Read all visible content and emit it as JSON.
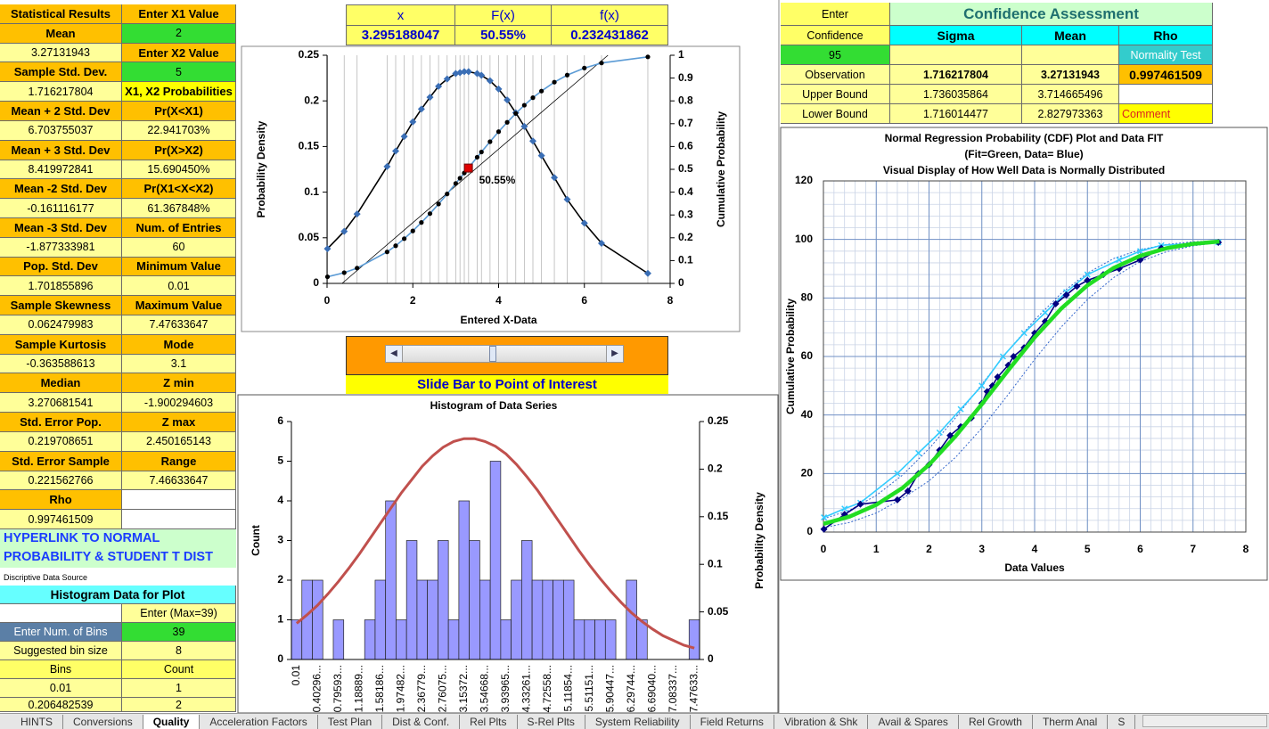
{
  "stats_table": {
    "rows": [
      [
        "Statistical Results",
        "Enter X1 Value"
      ],
      [
        "Mean",
        "2"
      ],
      [
        "3.27131943",
        "Enter X2 Value"
      ],
      [
        "Sample Std. Dev.",
        "5"
      ],
      [
        "1.716217804",
        "X1, X2 Probabilities"
      ],
      [
        "Mean + 2 Std. Dev",
        "Pr(X<X1)"
      ],
      [
        "6.703755037",
        "22.941703%"
      ],
      [
        "Mean + 3 Std. Dev",
        "Pr(X>X2)"
      ],
      [
        "8.419972841",
        "15.690450%"
      ],
      [
        "Mean -2 Std. Dev",
        "Pr(X1<X<X2)"
      ],
      [
        "-0.161116177",
        "61.367848%"
      ],
      [
        "Mean -3 Std. Dev",
        "Num. of Entries"
      ],
      [
        "-1.877333981",
        "60"
      ],
      [
        "Pop. Std. Dev",
        "Minimum Value"
      ],
      [
        "1.701855896",
        "0.01"
      ],
      [
        "Sample Skewness",
        "Maximum Value"
      ],
      [
        "0.062479983",
        "7.47633647"
      ],
      [
        "Sample Kurtosis",
        "Mode"
      ],
      [
        "-0.363588613",
        "3.1"
      ],
      [
        "Median",
        "Z min"
      ],
      [
        "3.270681541",
        "-1.900294603"
      ],
      [
        "Std. Error Pop.",
        "Z max"
      ],
      [
        "0.219708651",
        "2.450165143"
      ],
      [
        "Std. Error Sample",
        "Range"
      ],
      [
        "0.221562766",
        "7.46633647"
      ],
      [
        "Rho",
        null
      ],
      [
        "0.997461509",
        null
      ]
    ]
  },
  "hyperlink": "HYPERLINK TO NORMAL PROBABILITY & STUDENT T DIST",
  "data_source_note": "Discriptive Data Source",
  "histogram_table": {
    "title": "Histogram Data for Plot",
    "rows": [
      [
        null,
        "Enter (Max=39)"
      ],
      [
        "Enter Num. of Bins",
        "39"
      ],
      [
        "Suggested  bin size",
        "8"
      ],
      [
        "Bins",
        "Count"
      ],
      [
        "0.01",
        "1"
      ],
      [
        "0.206482539",
        "2"
      ]
    ]
  },
  "point_table": {
    "headers": [
      "x",
      "F(x)",
      "f(x)"
    ],
    "values": [
      "3.295188047",
      "50.55%",
      "0.232431862"
    ]
  },
  "slider_label": "Slide Bar to Point of Interest",
  "confidence_table": {
    "rows": [
      [
        "Enter",
        "Confidence Assessment"
      ],
      [
        "Confidence",
        "Sigma",
        "Mean",
        "Rho"
      ],
      [
        "95",
        null,
        null,
        "Normality Test"
      ],
      [
        "Observation",
        "1.716217804",
        "3.27131943",
        "0.997461509"
      ],
      [
        "Upper Bound",
        "1.736035864",
        "3.714665496",
        null
      ],
      [
        "Lower Bound",
        "1.716014477",
        "2.827973363",
        "Comment"
      ]
    ]
  },
  "charts": [
    {
      "type": "line",
      "x_title": "Entered X-Data",
      "y_title": "Probability Density",
      "y2_title": "Cumulative Probability",
      "xlim": [
        0,
        8
      ],
      "xticks": [
        0,
        2,
        4,
        6,
        8
      ],
      "ylim": [
        0,
        0.25
      ],
      "yticks": [
        0,
        0.05,
        0.1,
        0.15,
        0.2,
        0.25
      ],
      "y2lim": [
        0,
        1
      ],
      "y2ticks": [
        0,
        0.1,
        0.2,
        0.3,
        0.4,
        0.5,
        0.6,
        0.7,
        0.8,
        0.9,
        1
      ],
      "x_grid_at_data": true,
      "x": [
        0.01,
        0.4,
        0.7,
        1.4,
        1.6,
        1.8,
        2.0,
        2.2,
        2.4,
        2.6,
        2.8,
        3.0,
        3.1,
        3.2,
        3.3,
        3.5,
        3.6,
        3.8,
        4.0,
        4.2,
        4.4,
        4.6,
        4.8,
        5.0,
        5.3,
        5.6,
        6.0,
        6.4,
        7.48
      ],
      "series": [
        {
          "color": "#3a6eb5",
          "line_color": "#000000",
          "marker": "diamond",
          "values": [
            0.038,
            0.057,
            0.076,
            0.128,
            0.145,
            0.161,
            0.177,
            0.191,
            0.204,
            0.216,
            0.224,
            0.23,
            0.231,
            0.232,
            0.232,
            0.23,
            0.228,
            0.222,
            0.213,
            0.201,
            0.187,
            0.172,
            0.156,
            0.14,
            0.116,
            0.092,
            0.066,
            0.044,
            0.011
          ]
        },
        {
          "color": "#000000",
          "line_color": "#5b9bd5",
          "marker": "dot",
          "axis": "y2",
          "values": [
            0.029,
            0.047,
            0.067,
            0.138,
            0.165,
            0.196,
            0.23,
            0.267,
            0.306,
            0.348,
            0.392,
            0.438,
            0.461,
            0.484,
            0.507,
            0.553,
            0.576,
            0.621,
            0.665,
            0.706,
            0.745,
            0.781,
            0.814,
            0.843,
            0.882,
            0.913,
            0.944,
            0.966,
            0.993
          ]
        }
      ],
      "fit_line": {
        "x": [
          0.35,
          6.55
        ],
        "values": [
          0,
          1
        ],
        "axis": "y2",
        "color": "#000000"
      },
      "highlight": {
        "x": 3.295188047,
        "value": 0.5055,
        "axis": "y2",
        "color": "#e00000"
      },
      "annotation": "50.55%"
    },
    {
      "type": "bar",
      "title": "Histogram of Data Series",
      "y_title": "Count",
      "y2_title": "Probability Density",
      "categories": [
        "0.01",
        null,
        "0.40296...",
        null,
        "0.79593...",
        null,
        "1.18889...",
        null,
        "1.58186...",
        null,
        "1.97482...",
        null,
        "2.36779...",
        null,
        "2.76075...",
        null,
        "3.15372...",
        null,
        "3.54668...",
        null,
        "3.93965...",
        null,
        "4.33261...",
        null,
        "4.72558...",
        null,
        "5.11854...",
        null,
        "5.51151...",
        null,
        "5.90447...",
        null,
        "6.29744...",
        null,
        "6.69040...",
        null,
        "7.08337...",
        null,
        "7.47633..."
      ],
      "values": [
        1,
        2,
        2,
        0,
        1,
        0,
        0,
        1,
        2,
        4,
        1,
        3,
        2,
        2,
        3,
        1,
        4,
        3,
        2,
        5,
        1,
        2,
        3,
        2,
        2,
        2,
        2,
        1,
        1,
        1,
        1,
        0,
        2,
        1,
        0,
        0,
        0,
        0,
        1
      ],
      "color": "#9999ff",
      "ylim": [
        0,
        6
      ],
      "yticks": [
        0,
        1,
        2,
        3,
        4,
        5,
        6
      ],
      "y2lim": [
        0,
        0.25
      ],
      "y2ticks": [
        0,
        0.05,
        0.1,
        0.15,
        0.2,
        0.25
      ],
      "series": [
        {
          "color": "#c0504d",
          "axis": "y2",
          "values": [
            0.038,
            0.047,
            0.057,
            0.069,
            0.082,
            0.096,
            0.111,
            0.127,
            0.143,
            0.159,
            0.175,
            0.189,
            0.203,
            0.214,
            0.223,
            0.229,
            0.232,
            0.232,
            0.229,
            0.224,
            0.216,
            0.205,
            0.192,
            0.178,
            0.162,
            0.146,
            0.13,
            0.114,
            0.099,
            0.085,
            0.072,
            0.06,
            0.049,
            0.04,
            0.032,
            0.025,
            0.02,
            0.015,
            0.012
          ]
        }
      ]
    },
    {
      "type": "scatter",
      "title": [
        "Normal Regression Probability (CDF) Plot and Data FIT",
        "(Fit=Green, Data= Blue)",
        "Visual Display of How Well Data is Normally Distributed"
      ],
      "x_title": "Data Values",
      "y_title": "Cumulative Probability",
      "xlim": [
        0,
        8
      ],
      "xticks": [
        0,
        1,
        2,
        3,
        4,
        5,
        6,
        7,
        8
      ],
      "ylim": [
        0,
        120
      ],
      "yticks": [
        0,
        20,
        40,
        60,
        80,
        100,
        120
      ],
      "grid": true,
      "minor_divisions": 5,
      "series": [
        {
          "color": "#3366cc",
          "marker": "none",
          "dash": "dotted",
          "x": [
            0,
            0.5,
            1,
            1.5,
            2,
            2.5,
            3,
            3.5,
            4,
            4.5,
            5,
            5.5,
            6,
            6.5,
            7,
            7.5
          ],
          "values": [
            4.5,
            7.5,
            12.5,
            19.5,
            28.5,
            39,
            50.5,
            62,
            72.5,
            81.5,
            88.5,
            93.5,
            96.5,
            98.3,
            99.2,
            99.6
          ]
        },
        {
          "color": "#3366cc",
          "marker": "none",
          "dash": "dotted",
          "x": [
            0,
            0.5,
            1,
            1.5,
            2,
            2.5,
            3,
            3.5,
            4,
            4.5,
            5,
            5.5,
            6,
            6.5,
            7,
            7.5
          ],
          "values": [
            1.5,
            3.3,
            6.5,
            11.5,
            17.5,
            25.5,
            35.5,
            47,
            59,
            70,
            79.5,
            87,
            92.5,
            95.8,
            97.8,
            98.9
          ]
        },
        {
          "color": "#33ccff",
          "marker": "x",
          "dash": "solid",
          "x": [
            0.01,
            0.4,
            0.7,
            1.4,
            1.8,
            2.2,
            2.6,
            3.0,
            3.4,
            3.8,
            4.2,
            4.6,
            5.0,
            5.6,
            6.0,
            6.4,
            7.48
          ],
          "values": [
            5,
            8,
            10,
            20,
            27,
            34,
            42,
            50,
            60,
            68,
            75,
            82,
            88,
            93,
            96,
            98,
            99
          ]
        },
        {
          "color": "#000080",
          "marker": "diamond",
          "dash": "solid",
          "x": [
            0.01,
            0.4,
            0.7,
            1.4,
            1.6,
            1.8,
            2.0,
            2.2,
            2.4,
            2.6,
            2.8,
            3.0,
            3.1,
            3.2,
            3.3,
            3.5,
            3.6,
            3.8,
            4.0,
            4.2,
            4.4,
            4.6,
            4.8,
            5.0,
            5.3,
            5.6,
            6.0,
            6.4,
            7.48
          ],
          "values": [
            1,
            6,
            9.5,
            11,
            14,
            20,
            23,
            28,
            33,
            36,
            39,
            44,
            48,
            50,
            53,
            57,
            60,
            63,
            68,
            72,
            78,
            81,
            84,
            86,
            88,
            90,
            93,
            97,
            99
          ]
        },
        {
          "color": "#22dd22",
          "marker": "none",
          "dash": "thick",
          "x": [
            0,
            0.5,
            1,
            1.5,
            2,
            2.5,
            3,
            3.5,
            4,
            4.5,
            5,
            5.5,
            6,
            6.5,
            7,
            7.5
          ],
          "values": [
            2.8,
            5.3,
            9.3,
            15.1,
            23.0,
            32.7,
            43.7,
            55.3,
            66.5,
            76.3,
            84.3,
            90.3,
            94.4,
            97.0,
            98.5,
            99.3
          ]
        }
      ]
    }
  ],
  "sheet_tabs": [
    "HINTS",
    "Conversions",
    "Quality",
    "Acceleration Factors",
    "Test Plan",
    "Dist & Conf.",
    "Rel Plts",
    "S-Rel Plts",
    "System Reliability",
    "Field Returns",
    "Vibration & Shk",
    "Avail & Spares",
    "Rel Growth",
    "Therm Anal",
    "S"
  ],
  "active_tab": 2
}
